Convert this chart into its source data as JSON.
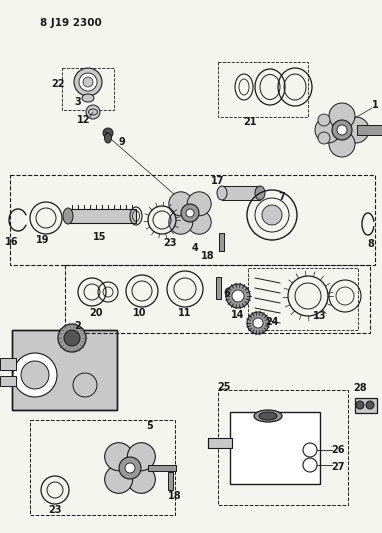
{
  "title": "8 J19 2300",
  "bg_color": "#f5f5f0",
  "line_color": "#1a1a1a",
  "fig_width": 3.82,
  "fig_height": 5.33,
  "dpi": 100,
  "gray_light": "#c8c8c8",
  "gray_mid": "#999999",
  "gray_dark": "#555555",
  "white": "#ffffff"
}
